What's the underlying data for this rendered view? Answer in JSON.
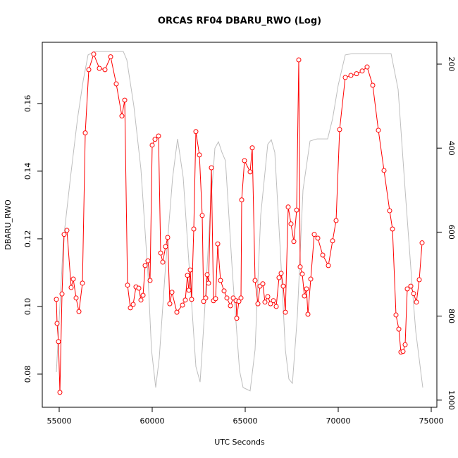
{
  "chart_data": {
    "type": "line",
    "title": "ORCAS RF04 DBARU_RWO (Log)",
    "x_label": "UTC Seconds",
    "y_label": "DBARU_RWO",
    "xlim": [
      54091,
      75303
    ],
    "xticks": [
      55000,
      60000,
      65000,
      70000,
      75000
    ],
    "ylim": [
      0.0702,
      0.1781
    ],
    "yticks": [
      0.08,
      {
        "value": 0.1,
        "label": "0.10"
      },
      0.12,
      0.14,
      0.16
    ],
    "y2lim": [
      1017,
      148
    ],
    "y2ticks": [
      200,
      400,
      600,
      800,
      1000
    ],
    "series": [
      {
        "color": "#bebebe",
        "axis": "y2",
        "markers": false,
        "x": [
          54848,
          55227,
          55606,
          55985,
          56288,
          56553,
          56932,
          58447,
          58636,
          59015,
          59394,
          59773,
          59962,
          60189,
          60379,
          60720,
          61098,
          61364,
          61667,
          62045,
          62348,
          62576,
          62803,
          63106,
          63371,
          63561,
          63750,
          63939,
          64318,
          64697,
          64886,
          65265,
          65530,
          65833,
          66212,
          66402,
          66591,
          66894,
          67159,
          67348,
          67538,
          67803,
          68106,
          68485,
          68864,
          69432,
          69697,
          70000,
          70379,
          70758,
          72841,
          73220,
          73598,
          73977,
          74167,
          74545
        ],
        "values": [
          933,
          620,
          470,
          330,
          240,
          178,
          170,
          170,
          190,
          300,
          450,
          700,
          880,
          970,
          900,
          680,
          470,
          378,
          470,
          720,
          920,
          957,
          800,
          560,
          400,
          385,
          410,
          430,
          700,
          930,
          970,
          978,
          880,
          560,
          391,
          380,
          410,
          650,
          880,
          950,
          960,
          800,
          500,
          383,
          378,
          378,
          330,
          250,
          178,
          175,
          175,
          260,
          500,
          730,
          836,
          970
        ]
      },
      {
        "color": "#ff0000",
        "markers": true,
        "x": [
          54848,
          54886,
          54962,
          55038,
          55152,
          55265,
          55417,
          55644,
          55758,
          55909,
          56061,
          56250,
          56402,
          56591,
          56856,
          57159,
          57462,
          57765,
          58068,
          58371,
          58523,
          58674,
          58826,
          58977,
          59129,
          59280,
          59394,
          59508,
          59621,
          59773,
          59886,
          60000,
          60152,
          60341,
          60455,
          60568,
          60720,
          60833,
          60947,
          61061,
          61326,
          61629,
          61780,
          61894,
          61970,
          62045,
          62121,
          62235,
          62348,
          62538,
          62689,
          62765,
          62879,
          62955,
          63030,
          63182,
          63295,
          63409,
          63523,
          63674,
          63864,
          64015,
          64205,
          64356,
          64508,
          64545,
          64659,
          64773,
          64811,
          64962,
          65265,
          65379,
          65530,
          65682,
          65795,
          65947,
          66061,
          66212,
          66364,
          66515,
          66667,
          66818,
          66932,
          67045,
          67159,
          67311,
          67462,
          67614,
          67765,
          67879,
          67955,
          68068,
          68182,
          68295,
          68371,
          68523,
          68712,
          68902,
          69167,
          69470,
          69697,
          69886,
          70076,
          70379,
          70682,
          70985,
          71288,
          71553,
          71856,
          72159,
          72462,
          72765,
          72917,
          73106,
          73258,
          73371,
          73485,
          73598,
          73712,
          73902,
          74053,
          74205,
          74356,
          74508
        ],
        "values": [
          0.1021,
          0.095,
          0.0896,
          0.0746,
          0.1037,
          0.1213,
          0.1225,
          0.1056,
          0.1081,
          0.1025,
          0.0985,
          0.1069,
          0.1513,
          0.17,
          0.1746,
          0.1704,
          0.17,
          0.1738,
          0.1658,
          0.1563,
          0.161,
          0.1063,
          0.0996,
          0.1006,
          0.1058,
          0.1054,
          0.1019,
          0.1033,
          0.1121,
          0.1135,
          0.1077,
          0.1477,
          0.1494,
          0.1504,
          0.1158,
          0.1131,
          0.1177,
          0.1204,
          0.1008,
          0.1042,
          0.0983,
          0.1004,
          0.1019,
          0.1092,
          0.1048,
          0.1108,
          0.1021,
          0.1229,
          0.1517,
          0.1448,
          0.1269,
          0.1015,
          0.1025,
          0.1094,
          0.1069,
          0.141,
          0.1017,
          0.1023,
          0.1185,
          0.1077,
          0.1046,
          0.1025,
          0.1002,
          0.1025,
          0.1017,
          0.0965,
          0.1015,
          0.1025,
          0.1315,
          0.1431,
          0.1398,
          0.1469,
          0.1077,
          0.1008,
          0.106,
          0.1067,
          0.1013,
          0.1029,
          0.1008,
          0.1017,
          0.1,
          0.1085,
          0.1098,
          0.106,
          0.0983,
          0.1294,
          0.1244,
          0.1192,
          0.1285,
          0.1729,
          0.1117,
          0.1096,
          0.1031,
          0.1052,
          0.0977,
          0.1081,
          0.1213,
          0.1202,
          0.1152,
          0.1121,
          0.1194,
          0.1254,
          0.1523,
          0.1677,
          0.1683,
          0.1688,
          0.1696,
          0.1708,
          0.1654,
          0.1521,
          0.1402,
          0.1283,
          0.1229,
          0.0975,
          0.0933,
          0.0865,
          0.0867,
          0.0887,
          0.1052,
          0.106,
          0.1038,
          0.1013,
          0.1079,
          0.1188
        ]
      }
    ]
  }
}
